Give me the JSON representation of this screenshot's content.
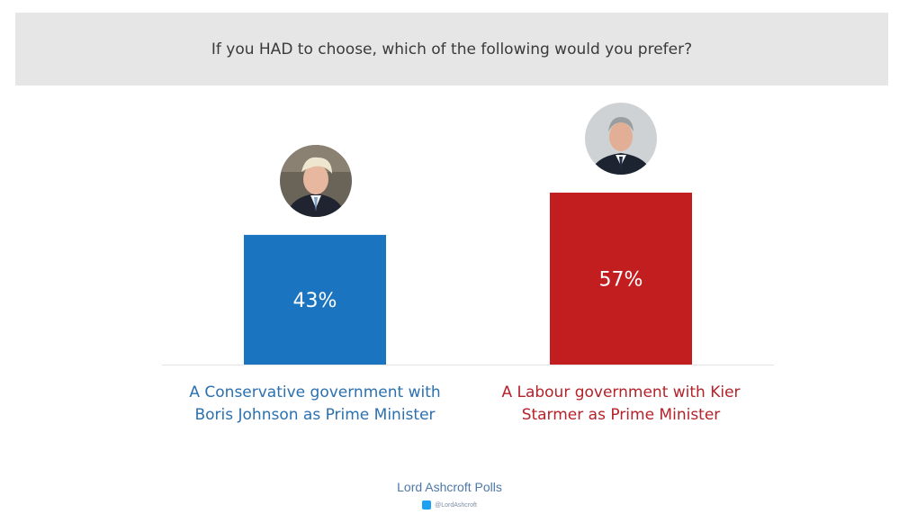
{
  "title": "If you HAD to choose, which of the following would you prefer?",
  "chart_data": {
    "type": "bar",
    "title": "If you HAD to choose, which of the following would you prefer?",
    "categories": [
      "A Conservative government with Boris Johnson as Prime Minister",
      "A Labour government with Kier Starmer as Prime Minister"
    ],
    "category_lines": [
      [
        "A Conservative government with",
        "Boris Johnson as Prime Minister"
      ],
      [
        "A Labour government with Kier",
        "Starmer as Prime Minister"
      ]
    ],
    "values": [
      43,
      57
    ],
    "value_labels": [
      "43%",
      "57%"
    ],
    "bar_colors": [
      "#1a74c0",
      "#c21d1f"
    ],
    "label_colors": [
      "#2b70b0",
      "#b4222a"
    ],
    "ylim": [
      0,
      100
    ],
    "xlabel": "",
    "ylabel": "",
    "grid": false,
    "legend": "none"
  },
  "footer": {
    "brand": "Lord Ashcroft Polls",
    "handle": "@LordAshcroft",
    "handle_icon": "twitter-icon"
  }
}
